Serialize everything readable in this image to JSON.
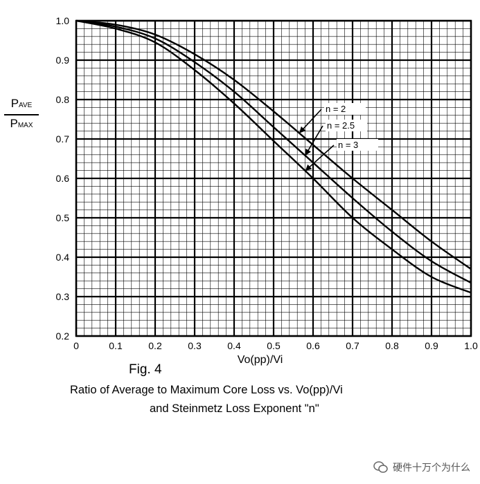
{
  "chart_data": {
    "type": "line",
    "xlabel": "Vo(pp)/Vi",
    "ylabel_num": "P",
    "ylabel_num_sub": "AVE",
    "ylabel_den": "P",
    "ylabel_den_sub": "MAX",
    "xlim": [
      0,
      1.0
    ],
    "ylim": [
      0.2,
      1.0
    ],
    "xticks": [
      "0",
      "0.1",
      "0.2",
      "0.3",
      "0.4",
      "0.5",
      "0.6",
      "0.7",
      "0.8",
      "0.9",
      "1.0"
    ],
    "yticks": [
      "0.2",
      "0.3",
      "0.4",
      "0.5",
      "0.6",
      "0.7",
      "0.8",
      "0.9",
      "1.0"
    ],
    "grid": true,
    "series": [
      {
        "name": "n = 2",
        "x": [
          0,
          0.1,
          0.2,
          0.3,
          0.4,
          0.5,
          0.6,
          0.7,
          0.8,
          0.9,
          1.0
        ],
        "y": [
          1.0,
          0.99,
          0.965,
          0.915,
          0.85,
          0.77,
          0.685,
          0.6,
          0.52,
          0.44,
          0.37
        ]
      },
      {
        "name": "n = 2.5",
        "x": [
          0,
          0.1,
          0.2,
          0.3,
          0.4,
          0.5,
          0.6,
          0.7,
          0.8,
          0.9,
          1.0
        ],
        "y": [
          1.0,
          0.985,
          0.955,
          0.895,
          0.82,
          0.73,
          0.64,
          0.55,
          0.465,
          0.39,
          0.335
        ]
      },
      {
        "name": "n = 3",
        "x": [
          0,
          0.1,
          0.2,
          0.3,
          0.4,
          0.5,
          0.6,
          0.7,
          0.8,
          0.9,
          1.0
        ],
        "y": [
          1.0,
          0.98,
          0.945,
          0.875,
          0.79,
          0.695,
          0.6,
          0.5,
          0.42,
          0.35,
          0.31
        ]
      }
    ]
  },
  "figure": {
    "label": "Fig. 4",
    "caption_line1": "Ratio of Average to Maximum Core Loss vs. Vo(pp)/Vi",
    "caption_line2": "and Steinmetz Loss Exponent \"n\""
  },
  "watermark": {
    "text": "硬件十万个为什么",
    "icon": "wechat-icon"
  }
}
